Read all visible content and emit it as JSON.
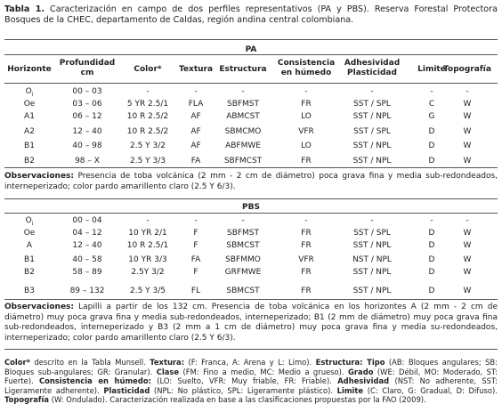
{
  "caption": [
    {
      "text": "Tabla 1.",
      "bold": true
    },
    {
      "text": " Caracterización en campo de dos perfiles representativos (PA y PBS). Reserva Forestal Protectora Bosques de la CHEC, departamento de Caldas, región andina central colombiana."
    }
  ],
  "columns": [
    "Horizonte",
    "Profundidad\ncm",
    "Color*",
    "Textura",
    "Estructura",
    "Consistencia\nen húmedo",
    "Adhesividad\nPlasticidad",
    "Limite",
    "Topografía"
  ],
  "sections": [
    {
      "title": "PA",
      "rows": [
        [
          {
            "text": "O",
            "sub": "i"
          },
          "00 – 03",
          "-",
          "-",
          "-",
          "-",
          "-",
          "-",
          "-"
        ],
        [
          "Oe",
          "03 – 06",
          "5 YR 2.5/1",
          "FLA",
          "SBFMST",
          "FR",
          "SST / SPL",
          "C",
          "W"
        ],
        [
          "A1",
          "06 – 12",
          "10 R 2.5/2",
          "AF",
          "ABMCST",
          "LO",
          "SST / NPL",
          "G",
          "W"
        ],
        [
          "A2",
          "12 – 40",
          "10 R 2.5/2",
          "AF",
          "SBMCMO",
          "VFR",
          "SST / SPL",
          "D",
          "W"
        ],
        [
          "B1",
          "40 – 98",
          "2.5 Y 3/2",
          "AF",
          "ABFMWE",
          "LO",
          "SST / NPL",
          "D",
          "W"
        ],
        [
          "B2",
          "98 – X",
          "2.5 Y 3/3",
          "FA",
          "SBFMCST",
          "FR",
          "SST / NPL",
          "D",
          "W"
        ]
      ],
      "observations": [
        {
          "text": "Observaciones:",
          "bold": true
        },
        {
          "text": " Presencia de toba volcánica  (2 mm - 2 cm de diámetro)  poca grava fina y media sub-redondeados, interneperizado; color pardo amarillento claro (2.5 Y 6/3)."
        }
      ]
    },
    {
      "title": "PBS",
      "rows": [
        [
          {
            "text": "O",
            "sub": "i"
          },
          "00 – 04",
          "-",
          "-",
          "-",
          "-",
          "-",
          "-",
          "-"
        ],
        [
          "Oe",
          "04 – 12",
          "10 YR 2/1",
          "F",
          "SBFMST",
          "FR",
          "SST / SPL",
          "D",
          "W"
        ],
        [
          "A",
          "12 – 40",
          "10 R 2.5/1",
          "F",
          "SBMCST",
          "FR",
          "SST / NPL",
          "D",
          "W"
        ],
        [
          "B1",
          "40 – 58",
          "10 YR 3/3",
          "FA",
          "SBFMMO",
          "VFR",
          "NST / NPL",
          "D",
          "W"
        ],
        [
          "B2",
          "58 – 89",
          "2.5Y 3/2",
          "F",
          "GRFMWE",
          "FR",
          "SST / NPL",
          "D",
          "W"
        ],
        [
          "B3",
          "89 – 132",
          "2.5 Y 3/5",
          "FL",
          "SBMCST",
          "FR",
          "SST / NPL",
          "D",
          "W"
        ]
      ],
      "observations": [
        {
          "text": "Observaciones:",
          "bold": true
        },
        {
          "text": " Lapilli a partir de los 132 cm.  Presencia de toba volcánica en los horizontes A (2 mm - 2 cm de diámetro) muy poca grava fina y media sub-redondeados, interneperizado; B1 (2 mm de diámetro) muy poca grava fina sub-redondeados, interneperizado y B3 (2 mm a 1 cm de diámetro) muy poca grava fina y media su-redondeados, interneperizado; color pardo amarillento claro (2.5 Y 6/3)."
        }
      ]
    }
  ],
  "footnote": [
    {
      "text": "Color*",
      "bold": true
    },
    {
      "text": " descrito en la Tabla Munsell. "
    },
    {
      "text": "Textura:",
      "bold": true
    },
    {
      "text": " (F: Franca, A: Arena y L: Limo). "
    },
    {
      "text": "Estructura: Tipo",
      "bold": true
    },
    {
      "text": " (AB: Bloques angulares; SB: Bloques sub-angulares; GR: Granular). "
    },
    {
      "text": "Clase",
      "bold": true
    },
    {
      "text": " (FM: Fino a medio, MC: Medio a grueso). "
    },
    {
      "text": "Grado",
      "bold": true
    },
    {
      "text": " (WE: Débil, MO: Moderado, ST: Fuerte). "
    },
    {
      "text": "Consistencia en húmedo:",
      "bold": true
    },
    {
      "text": " (LO: Suelto, VFR: Muy friable, FR: Friable). "
    },
    {
      "text": "Adhesividad",
      "bold": true
    },
    {
      "text": " (NST: No adherente, SST: Ligeramente adherente). "
    },
    {
      "text": "Plasticidad",
      "bold": true
    },
    {
      "text": " (NPL: No plástico, SPL: Ligeramente plástico). "
    },
    {
      "text": "Limite",
      "bold": true
    },
    {
      "text": " (C: Claro, G: Gradual, D: Difuso). "
    },
    {
      "text": "Topografía",
      "bold": true
    },
    {
      "text": " (W: Ondulado). Caracterización realizada en base a las clasificaciones propuestas por la FAO (2009)."
    }
  ]
}
